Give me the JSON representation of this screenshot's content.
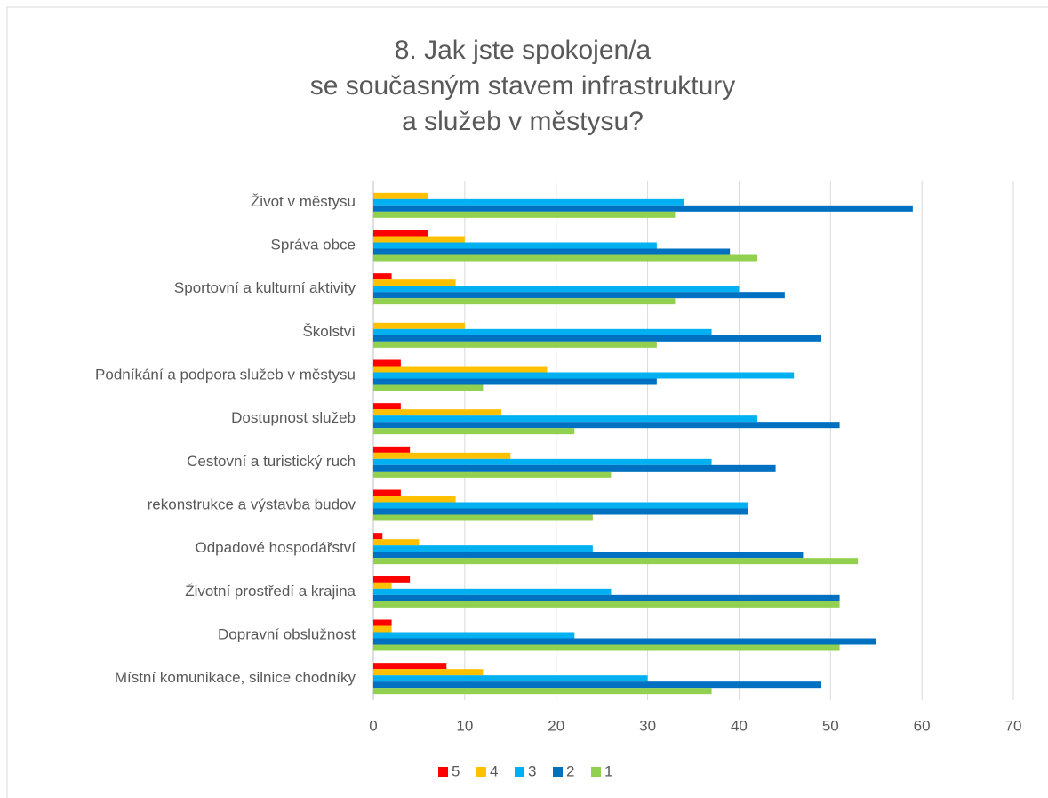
{
  "chart_data": {
    "type": "bar",
    "orientation": "horizontal",
    "title": [
      "8. Jak jste spokojen/a",
      "se současným stavem infrastruktury",
      "a služeb v městysu?"
    ],
    "categories": [
      "Život v městysu",
      "Správa obce",
      "Sportovní a kulturní aktivity",
      "Školství",
      "Podníkání a podpora služeb v městysu",
      "Dostupnost služeb",
      "Cestovní a turistický ruch",
      "rekonstrukce a výstavba budov",
      "Odpadové hospodářství",
      "Životní prostředí  a krajina",
      "Dopravní obslužnost",
      "Místní komunikace, silnice chodníky"
    ],
    "series": [
      {
        "name": "5",
        "color": "#ff0000",
        "values": [
          0,
          6,
          2,
          0,
          3,
          3,
          4,
          3,
          1,
          4,
          2,
          8
        ]
      },
      {
        "name": "4",
        "color": "#ffc000",
        "values": [
          6,
          10,
          9,
          10,
          19,
          14,
          15,
          9,
          5,
          2,
          2,
          12
        ]
      },
      {
        "name": "3",
        "color": "#00b0f0",
        "values": [
          34,
          31,
          40,
          37,
          46,
          42,
          37,
          41,
          24,
          26,
          22,
          30
        ]
      },
      {
        "name": "2",
        "color": "#0070c0",
        "values": [
          59,
          39,
          45,
          49,
          31,
          51,
          44,
          41,
          47,
          51,
          55,
          49
        ]
      },
      {
        "name": "1",
        "color": "#92d050",
        "values": [
          33,
          42,
          33,
          31,
          12,
          22,
          26,
          24,
          53,
          51,
          51,
          37
        ]
      }
    ],
    "xlim": [
      0,
      70
    ],
    "xticks": [
      0,
      10,
      20,
      30,
      40,
      50,
      60,
      70
    ],
    "grid": true,
    "legend": "bottom"
  }
}
